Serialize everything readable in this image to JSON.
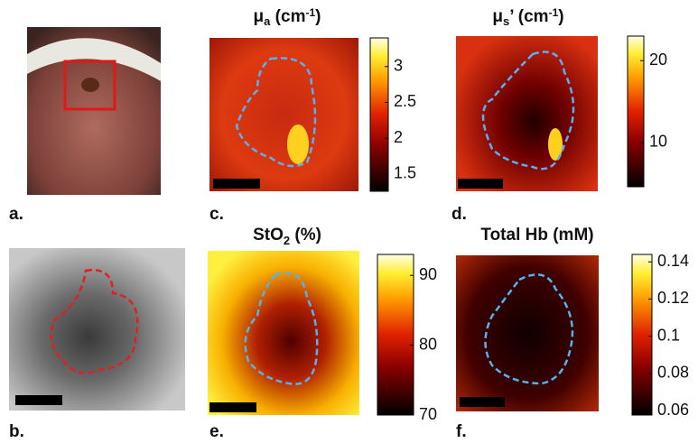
{
  "panels": [
    {
      "label": "a."
    },
    {
      "label": "b."
    },
    {
      "label": "c.",
      "title": [
        "μ",
        "a",
        " (cm",
        "-1",
        ")"
      ],
      "colorbar": {
        "clim": [
          1.26,
          3.4
        ],
        "ticks": [
          1.5,
          2,
          2.5,
          3
        ]
      }
    },
    {
      "label": "d.",
      "title": [
        "μ",
        "s",
        "’ (cm",
        "-1",
        ")"
      ],
      "colorbar": {
        "clim": [
          4.6,
          23
        ],
        "ticks": [
          10,
          20
        ]
      }
    },
    {
      "label": "e.",
      "title": [
        "StO",
        "2",
        " (%)"
      ],
      "colorbar": {
        "clim": [
          70,
          93
        ],
        "ticks": [
          70,
          80,
          90
        ]
      }
    },
    {
      "label": "f.",
      "title": [
        "Total Hb (mM)"
      ],
      "colorbar": {
        "clim": [
          0.0576,
          0.144
        ],
        "ticks": [
          0.06,
          0.08,
          0.1,
          0.12,
          0.14
        ]
      }
    }
  ]
}
